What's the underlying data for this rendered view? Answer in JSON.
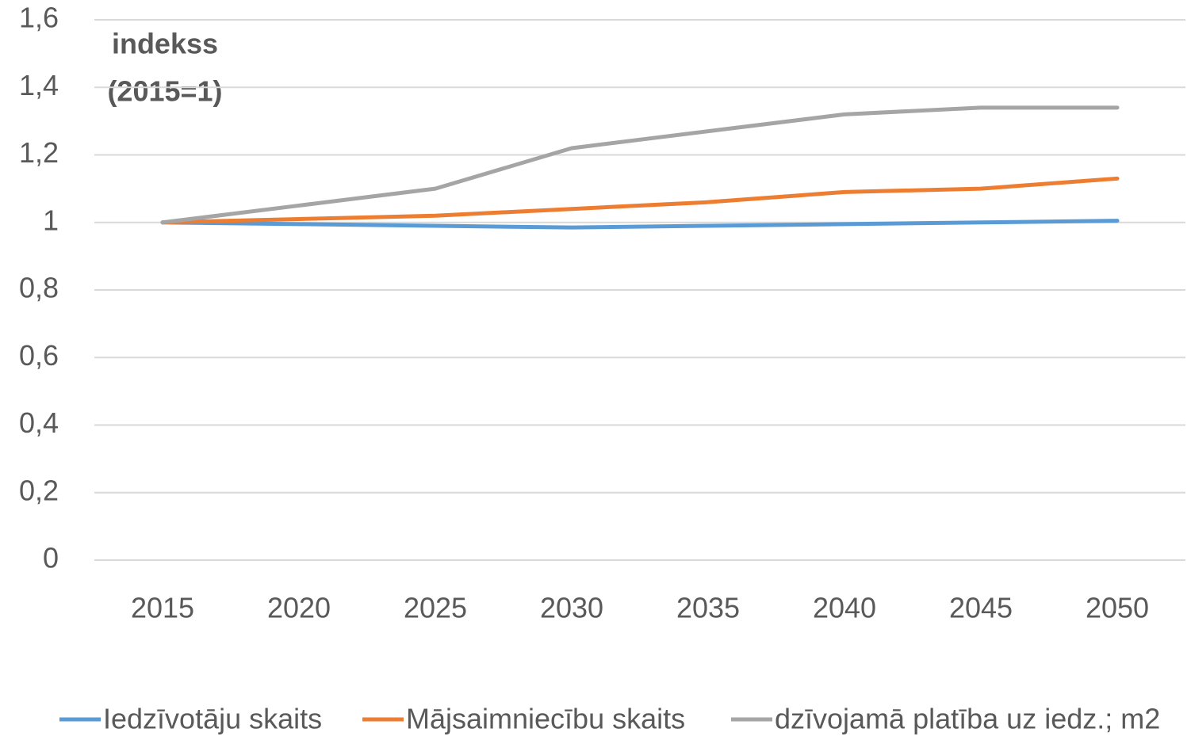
{
  "chart_data": {
    "type": "line",
    "annotation": [
      "indekss",
      "(2015=1)"
    ],
    "categories": [
      "2015",
      "2020",
      "2025",
      "2030",
      "2035",
      "2040",
      "2045",
      "2050"
    ],
    "series": [
      {
        "name": "Iedzīvotāju skaits",
        "color": "#5b9bd5",
        "values": [
          1.0,
          0.995,
          0.99,
          0.985,
          0.99,
          0.995,
          1.0,
          1.005
        ]
      },
      {
        "name": "Mājsaimniecību skaits",
        "color": "#ed7d31",
        "values": [
          1.0,
          1.01,
          1.02,
          1.04,
          1.06,
          1.09,
          1.1,
          1.13
        ]
      },
      {
        "name": "dzīvojamā platība uz iedz.; m2",
        "color": "#a5a5a5",
        "values": [
          1.0,
          1.05,
          1.1,
          1.22,
          1.27,
          1.32,
          1.34,
          1.34
        ]
      }
    ],
    "ylim": [
      0,
      1.6
    ],
    "yticks": [
      0,
      {
        "value": 0.2,
        "label": "0,2"
      },
      {
        "value": 0.4,
        "label": "0,4"
      },
      {
        "value": 0.6,
        "label": "0,6"
      },
      {
        "value": 0.8,
        "label": "0,8"
      },
      1,
      {
        "value": 1.2,
        "label": "1,2"
      },
      {
        "value": 1.4,
        "label": "1,4"
      },
      {
        "value": 1.6,
        "label": "1,6"
      }
    ],
    "grid": true,
    "legend": "bottom"
  }
}
